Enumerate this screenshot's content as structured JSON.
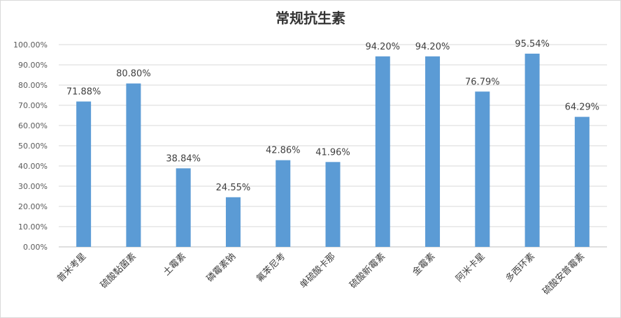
{
  "chart_data": {
    "type": "bar",
    "title": "常规抗生素",
    "categories": [
      "普米考星",
      "硫酸黏菌素",
      "土霉素",
      "磷霉素钠",
      "氟苯尼考",
      "单硫酸卡那",
      "硫酸新霉素",
      "金霉素",
      "阿米卡星",
      "多西环素",
      "硫酸安普霉素"
    ],
    "values": [
      71.88,
      80.8,
      38.84,
      24.55,
      42.86,
      41.96,
      94.2,
      94.2,
      76.79,
      95.54,
      64.29
    ],
    "data_labels": [
      "71.88%",
      "80.80%",
      "38.84%",
      "24.55%",
      "42.86%",
      "41.96%",
      "94.20%",
      "94.20%",
      "76.79%",
      "95.54%",
      "64.29%"
    ],
    "yticks": [
      "0.00%",
      "10.00%",
      "20.00%",
      "30.00%",
      "40.00%",
      "50.00%",
      "60.00%",
      "70.00%",
      "80.00%",
      "90.00%",
      "100.00%"
    ],
    "ylim": [
      0,
      100
    ],
    "grid": true,
    "bar_color": "#5b9bd5",
    "legend": "none"
  }
}
